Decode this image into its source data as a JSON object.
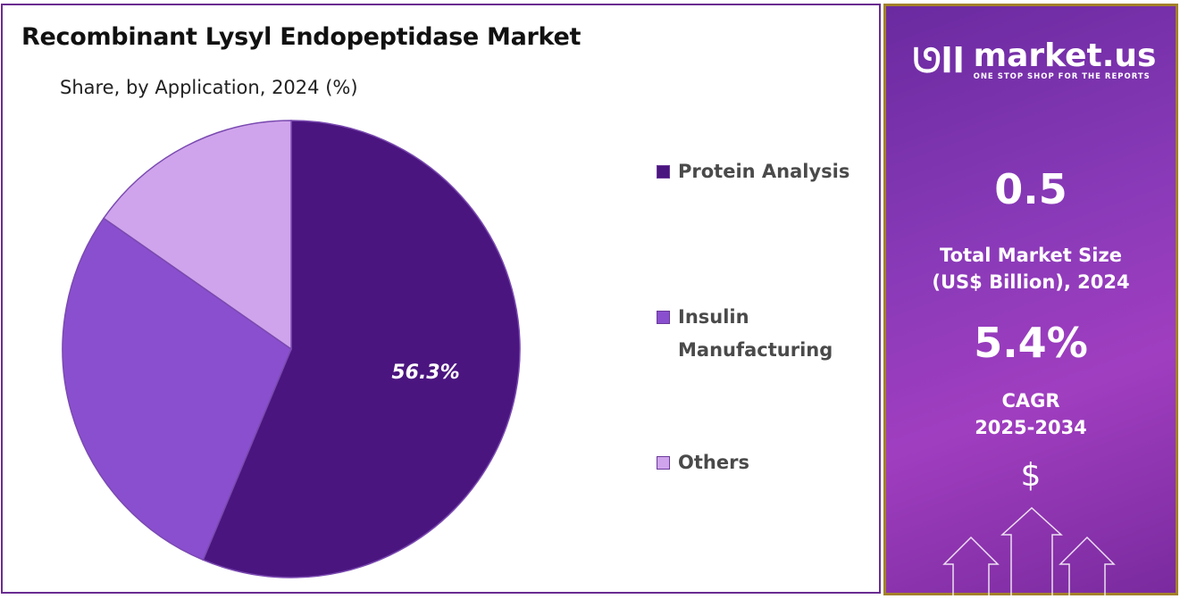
{
  "chart_data": {
    "type": "pie",
    "title": "Recombinant Lysyl Endopeptidase Market",
    "subtitle": "Share, by Application, 2024 (%)",
    "legend_position": "right",
    "slices": [
      {
        "name": "Protein Analysis",
        "value": 56.3,
        "color": "#4b1580",
        "label": "56.3%"
      },
      {
        "name": "Insulin Manufacturing",
        "value": 28.4,
        "color": "#8a4fcf"
      },
      {
        "name": "Others",
        "value": 15.3,
        "color": "#d0a4ec"
      }
    ]
  },
  "legend": [
    "Protein Analysis",
    "Insulin",
    "Manufacturing",
    "Others"
  ],
  "panel": {
    "logo_name": "market.us",
    "logo_tagline": "ONE STOP SHOP FOR THE REPORTS",
    "market_size": "0.5",
    "market_size_label_1": "Total Market Size",
    "market_size_label_2": "(US$ Billion), 2024",
    "cagr": "5.4%",
    "cagr_label_1": "CAGR",
    "cagr_label_2": "2025-2034",
    "currency_symbol": "$"
  }
}
